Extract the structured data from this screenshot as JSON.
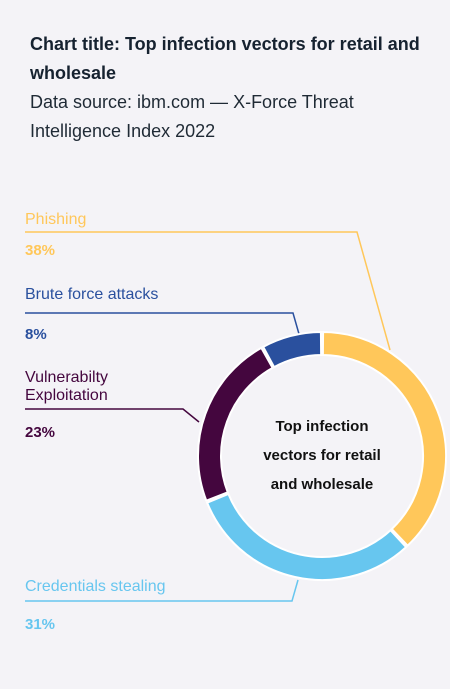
{
  "header": {
    "title": "Chart title: Top infection vectors for retail and wholesale",
    "source_line_1": "Data source: ibm.com — X-Force Threat",
    "source_line_2": "Intelligence Index 2022"
  },
  "chart_data": {
    "type": "donut",
    "title": "Top infection vectors for retail and wholesale",
    "center_label": "Top infection vectors for retail and wholesale",
    "slices": [
      {
        "label": "Phishing",
        "value": 38,
        "display": "38%",
        "color": "#ffc75a"
      },
      {
        "label": "Credentials stealing",
        "value": 31,
        "display": "31%",
        "color": "#67c6ef"
      },
      {
        "label": "Vulnerabilty Exploitation",
        "value": 23,
        "display": "23%",
        "color": "#44063e"
      },
      {
        "label": "Brute force attacks",
        "value": 8,
        "display": "8%",
        "color": "#2a509e"
      }
    ]
  }
}
